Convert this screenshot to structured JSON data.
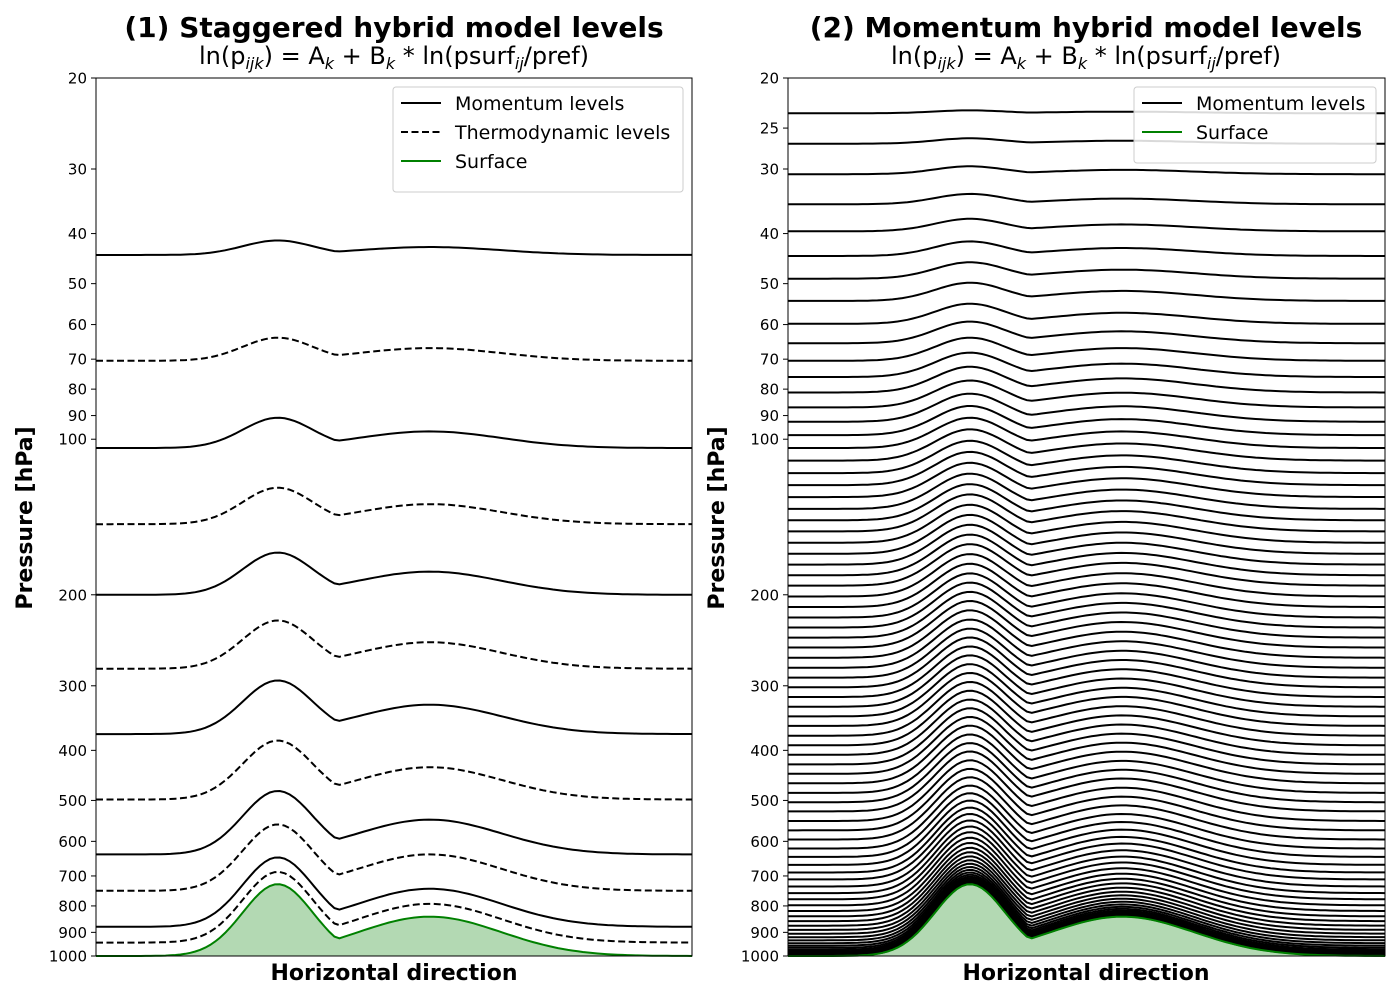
{
  "chart_data": [
    {
      "type": "line",
      "title": "(1) Staggered hybrid model levels",
      "subtitle": {
        "prefix": "ln(p",
        "sub1": "ijk",
        "mid1": ") = A",
        "sub2": "k",
        "mid2": " + B",
        "sub3": "k",
        "mid3": " * ln(psurf",
        "sub4": "ij",
        "suffix": "/pref)"
      },
      "xlabel": "Horizontal direction",
      "ylabel": "Pressure [hPa]",
      "yscale": "log",
      "ylim": [
        1000,
        20
      ],
      "yticks": [
        "20",
        "30",
        "40",
        "50",
        "60",
        "70",
        "80",
        "90",
        "100",
        "200",
        "300",
        "400",
        "500",
        "600",
        "700",
        "800",
        "900",
        "1000"
      ],
      "legend": {
        "placement": "top-right",
        "entries": [
          "Momentum levels",
          "Thermodynamic levels",
          "Surface"
        ]
      },
      "surface": {
        "base_pressure": 1000,
        "peak_pressure": 725,
        "second_peak_pressure": 875
      },
      "series": [
        {
          "name": "Momentum levels",
          "style": "solid",
          "base_pressures": [
            44,
            104,
            200,
            372,
            636,
            878
          ]
        },
        {
          "name": "Thermodynamic levels",
          "style": "dashed",
          "base_pressures": [
            70.5,
            146,
            278,
            498,
            748,
            942
          ]
        }
      ],
      "colors": {
        "levels": "#000000",
        "surface_line": "#008000",
        "surface_fill": "#b3d9b3"
      }
    },
    {
      "type": "line",
      "title": "(2) Momentum hybrid model levels",
      "subtitle": {
        "prefix": "ln(p",
        "sub1": "ijk",
        "mid1": ") = A",
        "sub2": "k",
        "mid2": " + B",
        "sub3": "k",
        "mid3": " * ln(psurf",
        "sub4": "ij",
        "suffix": "/pref)"
      },
      "xlabel": "Horizontal direction",
      "ylabel": "Pressure [hPa]",
      "yscale": "log",
      "ylim": [
        1000,
        20
      ],
      "yticks": [
        "20",
        "25",
        "30",
        "40",
        "50",
        "60",
        "70",
        "80",
        "90",
        "100",
        "200",
        "300",
        "400",
        "500",
        "600",
        "700",
        "800",
        "900",
        "1000"
      ],
      "legend": {
        "placement": "top-right",
        "entries": [
          "Momentum levels",
          "Surface"
        ]
      },
      "surface": {
        "base_pressure": 1000,
        "peak_pressure": 725,
        "second_peak_pressure": 875
      },
      "series": [
        {
          "name": "Momentum levels",
          "style": "solid",
          "base_pressures": [
            23.4,
            26.8,
            30.7,
            35.1,
            39.6,
            44.2,
            48.9,
            54.0,
            59.8,
            65.2,
            70.5,
            75.8,
            81.2,
            86.8,
            92.5,
            98.2,
            104.0,
            110.0,
            116.3,
            122.7,
            129.4,
            136.4,
            143.5,
            150.8,
            158.6,
            166.6,
            174.8,
            183.3,
            192.0,
            201.5,
            211.2,
            221.3,
            231.4,
            242.0,
            253.0,
            264.7,
            276.8,
            289.3,
            302.0,
            315.4,
            329.3,
            343.8,
            358.7,
            374.7,
            391.1,
            408.1,
            425.8,
            444.1,
            463.2,
            483.5,
            504.0,
            525.0,
            548.0,
            571.3,
            595.1,
            619.5,
            643.1,
            666.3,
            689.3,
            711.0,
            733.7,
            755.6,
            776.7,
            797.9,
            818.4,
            837.9,
            856.1,
            873.6,
            890.1,
            905.3,
            919.6,
            932.7,
            944.5,
            955.1,
            964.3,
            972.2,
            978.9,
            984.5,
            988.9,
            992.4,
            995.2,
            997.3,
            998.8
          ]
        }
      ],
      "colors": {
        "levels": "#000000",
        "surface_line": "#008000",
        "surface_fill": "#b3d9b3"
      }
    }
  ]
}
